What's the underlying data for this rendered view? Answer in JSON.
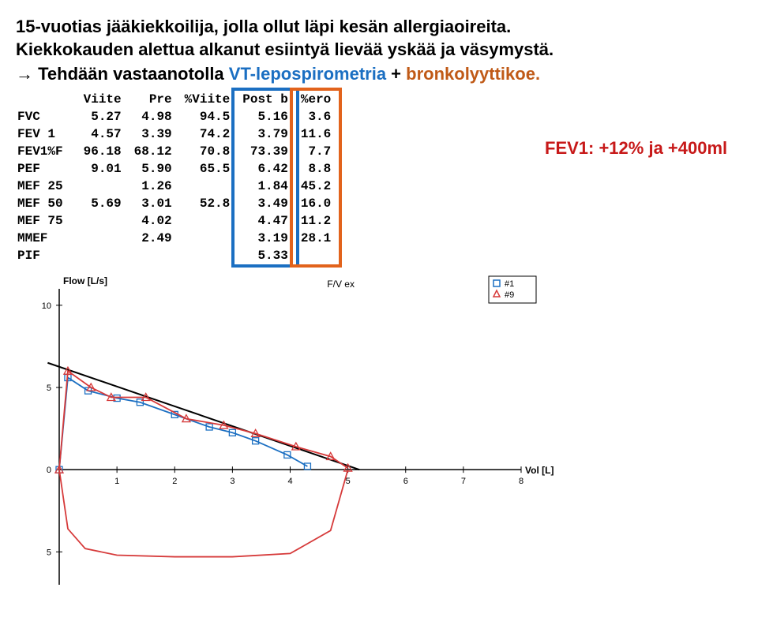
{
  "heading": {
    "line1": "15-vuotias jääkiekkoilija, jolla ollut läpi kesän allergiaoireita.",
    "line2": "Kiekkokauden alettua alkanut esiintyä lievää yskää ja väsymystä."
  },
  "action": {
    "arrow": "→",
    "lead": "Tehdään vastaanotolla ",
    "vt": "VT-lepospirometria",
    "plus": " + ",
    "bronk": "bronkolyyttikoe.",
    "vt_color": "#1b6fc2",
    "bronk_color": "#c05a17"
  },
  "caption": {
    "text": "FEV1: +12% ja +400ml",
    "color": "#c71919"
  },
  "table": {
    "headers": [
      "",
      "Viite",
      "Pre",
      "%Viite",
      "Post b",
      "%ero"
    ],
    "rows": [
      [
        "FVC",
        "5.27",
        "4.98",
        "94.5",
        "5.16",
        "3.6"
      ],
      [
        "FEV 1",
        "4.57",
        "3.39",
        "74.2",
        "3.79",
        "11.6"
      ],
      [
        "FEV1%F",
        "96.18",
        "68.12",
        "70.8",
        "73.39",
        "7.7"
      ],
      [
        "PEF",
        "9.01",
        "5.90",
        "65.5",
        "6.42",
        "8.8"
      ],
      [
        "MEF 25",
        "",
        "1.26",
        "",
        "1.84",
        "45.2"
      ],
      [
        "MEF 50",
        "5.69",
        "3.01",
        "52.8",
        "3.49",
        "16.0"
      ],
      [
        "MEF 75",
        "",
        "4.02",
        "",
        "4.47",
        "11.2"
      ],
      [
        "MMEF",
        "",
        "2.49",
        "",
        "3.19",
        "28.1"
      ],
      [
        "PIF",
        "",
        "",
        "",
        "5.33",
        ""
      ]
    ],
    "font_family": "Courier New",
    "text_color": "#000000",
    "fontsize": 16,
    "box_postb": {
      "color": "#1b6fc2",
      "col_index": 4
    },
    "box_ero": {
      "color": "#e2631c",
      "col_index": 5
    }
  },
  "chart": {
    "type": "flow-volume-loop",
    "x_label": "Vol [L]",
    "y_label": "Flow [L/s]",
    "title_right": "F/V ex",
    "legend": [
      "#1",
      "#9"
    ],
    "x_ticks": [
      1,
      2,
      3,
      4,
      5,
      6,
      7,
      8
    ],
    "y_ticks": [
      5,
      0,
      5,
      10
    ],
    "xlim": [
      0,
      8
    ],
    "ylim": [
      -7,
      11
    ],
    "background_color": "#ffffff",
    "axis_color": "#000000",
    "series": {
      "blue": {
        "color": "#1b6fc2",
        "marker": "square",
        "points": [
          [
            0,
            0
          ],
          [
            0.15,
            5.6
          ],
          [
            0.5,
            4.8
          ],
          [
            1.0,
            4.35
          ],
          [
            1.4,
            4.1
          ],
          [
            2.0,
            3.35
          ],
          [
            2.6,
            2.6
          ],
          [
            3.0,
            2.25
          ],
          [
            3.4,
            1.75
          ],
          [
            3.95,
            0.9
          ],
          [
            4.3,
            0.2
          ]
        ]
      },
      "red": {
        "color": "#d63a3a",
        "marker": "triangle",
        "points": [
          [
            0,
            0
          ],
          [
            0.15,
            6.0
          ],
          [
            0.55,
            5.0
          ],
          [
            0.9,
            4.4
          ],
          [
            1.5,
            4.4
          ],
          [
            2.2,
            3.1
          ],
          [
            2.85,
            2.7
          ],
          [
            3.4,
            2.2
          ],
          [
            4.1,
            1.4
          ],
          [
            4.7,
            0.8
          ],
          [
            5.0,
            0.1
          ]
        ]
      },
      "red_insp": {
        "color": "#d63a3a",
        "points": [
          [
            5.0,
            0.0
          ],
          [
            4.7,
            -3.7
          ],
          [
            4.0,
            -5.1
          ],
          [
            3.0,
            -5.3
          ],
          [
            2.0,
            -5.3
          ],
          [
            1.0,
            -5.2
          ],
          [
            0.45,
            -4.8
          ],
          [
            0.15,
            -3.6
          ],
          [
            0.05,
            -1.2
          ],
          [
            0,
            0
          ]
        ]
      },
      "black_tangent": {
        "color": "#000000",
        "points": [
          [
            -0.2,
            6.5
          ],
          [
            5.2,
            0
          ]
        ]
      }
    },
    "font_family": "Arial",
    "label_fontsize": 12,
    "tick_fontsize": 11
  }
}
